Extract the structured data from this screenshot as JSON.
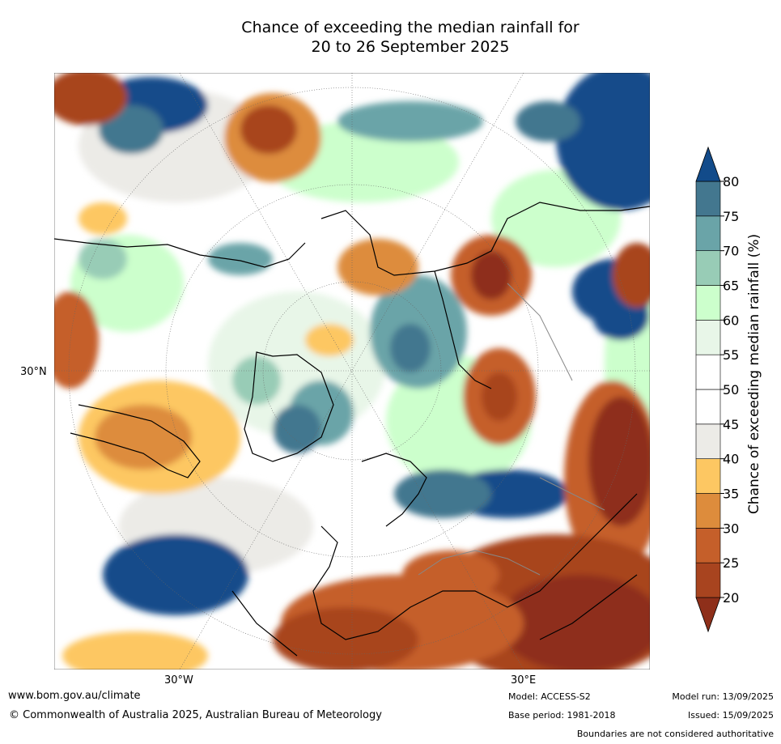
{
  "title": {
    "line1": "Chance of exceeding the median rainfall for",
    "line2": "20 to 26 September 2025"
  },
  "map": {
    "axis_labels": {
      "lat": "30°N",
      "lon_west": "30°W",
      "lon_east": "30°E"
    }
  },
  "colorbar": {
    "label": "Chance of exceeding median rainfall (%)",
    "ticks": [
      "20",
      "25",
      "30",
      "35",
      "40",
      "45",
      "50",
      "55",
      "60",
      "65",
      "70",
      "75",
      "80"
    ],
    "colors": [
      "#8e2f1a",
      "#a8441f",
      "#c55f2a",
      "#dd8c3c",
      "#fdc762",
      "#ecebe7",
      "#ffffff",
      "#ffffff",
      "#e8f6e8",
      "#ccffcc",
      "#98ccb6",
      "#6aa4a8",
      "#43778f",
      "#124b8a"
    ]
  },
  "footer": {
    "url": "www.bom.gov.au/climate",
    "copyright": "© Commonwealth of Australia 2025, Australian Bureau of Meteorology",
    "model": "Model: ACCESS-S2",
    "base_period": "Base period: 1981-2018",
    "model_run": "Model run: 13/09/2025",
    "issued": "Issued: 15/09/2025",
    "disclaimer": "Boundaries are not considered authoritative"
  }
}
